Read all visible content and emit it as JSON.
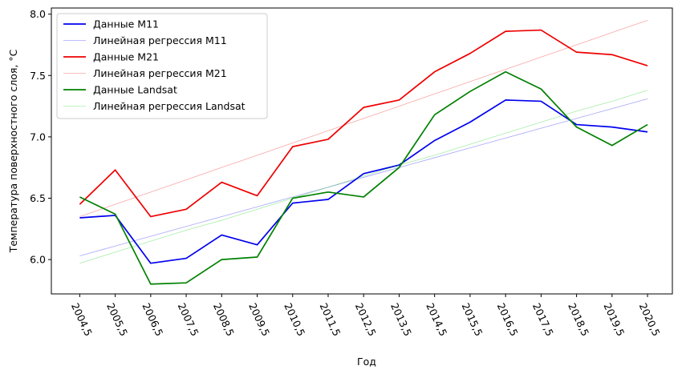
{
  "chart_data": {
    "type": "line",
    "xlabel": "Год",
    "ylabel": "Температура поверхностного слоя, °C",
    "x": [
      2004.5,
      2005.5,
      2006.5,
      2007.5,
      2008.5,
      2009.5,
      2010.5,
      2011.5,
      2012.5,
      2013.5,
      2014.5,
      2015.5,
      2016.5,
      2017.5,
      2018.5,
      2019.5,
      2020.5
    ],
    "xtick_labels": [
      "2004,5",
      "2005,5",
      "2006,5",
      "2007,5",
      "2008,5",
      "2009,5",
      "2010,5",
      "2011,5",
      "2012,5",
      "2013,5",
      "2014,5",
      "2015,5",
      "2016,5",
      "2017,5",
      "2018,5",
      "2019,5",
      "2020,5"
    ],
    "yticks": [
      6.0,
      6.5,
      7.0,
      7.5,
      8.0
    ],
    "ytick_labels": [
      "6.0",
      "6.5",
      "7.0",
      "7.5",
      "8.0"
    ],
    "xlim": [
      2003.7,
      2021.2
    ],
    "ylim": [
      5.72,
      8.05
    ],
    "grid": false,
    "legend_position": "top-left",
    "series": [
      {
        "name": "Данные M11",
        "color": "#0000ee",
        "kind": "data",
        "values": [
          6.34,
          6.36,
          5.97,
          6.01,
          6.2,
          6.12,
          6.46,
          6.49,
          6.7,
          6.77,
          6.97,
          7.12,
          7.3,
          7.29,
          7.1,
          7.08,
          7.04
        ]
      },
      {
        "name": "Линейная регрессия M11",
        "color": "#0000ee",
        "kind": "regression",
        "values": [
          6.03,
          6.11,
          6.19,
          6.27,
          6.35,
          6.43,
          6.51,
          6.59,
          6.67,
          6.75,
          6.83,
          6.91,
          6.99,
          7.07,
          7.15,
          7.23,
          7.31
        ]
      },
      {
        "name": "Данные M21",
        "color": "#ee0000",
        "kind": "data",
        "values": [
          6.45,
          6.73,
          6.35,
          6.41,
          6.63,
          6.52,
          6.92,
          6.98,
          7.24,
          7.3,
          7.53,
          7.68,
          7.86,
          7.87,
          7.69,
          7.67,
          7.58
        ]
      },
      {
        "name": "Линейная регрессия M21",
        "color": "#ee0000",
        "kind": "regression",
        "values": [
          6.35,
          6.45,
          6.55,
          6.65,
          6.75,
          6.85,
          6.95,
          7.05,
          7.15,
          7.25,
          7.35,
          7.45,
          7.55,
          7.65,
          7.75,
          7.85,
          7.95
        ]
      },
      {
        "name": "Данные Landsat",
        "color": "#008000",
        "kind": "data",
        "values": [
          6.51,
          6.37,
          5.8,
          5.81,
          6.0,
          6.02,
          6.5,
          6.55,
          6.51,
          6.75,
          7.18,
          7.37,
          7.53,
          7.39,
          7.08,
          6.93,
          7.1
        ]
      },
      {
        "name": "Линейная регрессия Landsat",
        "color": "#00cc00",
        "kind": "regression",
        "values": [
          5.97,
          6.06,
          6.15,
          6.24,
          6.32,
          6.41,
          6.5,
          6.59,
          6.68,
          6.77,
          6.85,
          6.94,
          7.03,
          7.12,
          7.21,
          7.29,
          7.38
        ]
      }
    ]
  }
}
